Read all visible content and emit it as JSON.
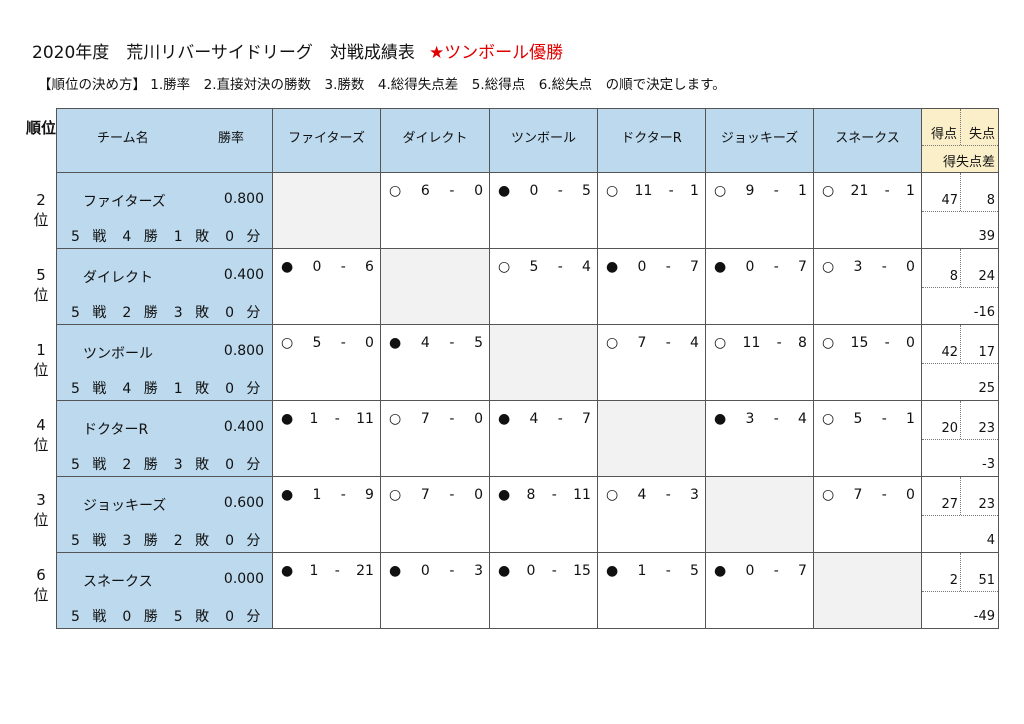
{
  "title": "2020年度　荒川リバーサイドリーグ　対戦成績表",
  "winner": "★ツンボール優勝",
  "rule": "【順位の決め方】 1.勝率　2.直接対決の勝数　3.勝数　4.総得失点差　5.総得点　6.総失点　の順で決定します。",
  "header": {
    "rank": "順位",
    "team": "チーム名",
    "rate": "勝率",
    "gf": "得点",
    "ga": "失点",
    "diff": "得失点差",
    "opponents": [
      "ファイターズ",
      "ダイレクト",
      "ツンボール",
      "ドクターR",
      "ジョッキーズ",
      "スネークス"
    ]
  },
  "rows": [
    {
      "rank": "2\n位",
      "name": "ファイターズ",
      "rate": "0.800",
      "record": "5 戦　4 勝　1 敗　0 分",
      "gf": "47",
      "ga": "8",
      "diff": "39",
      "results": [
        null,
        [
          "○",
          "6",
          "-",
          "0"
        ],
        [
          "●",
          "0",
          "-",
          "5"
        ],
        [
          "○",
          "11",
          "-",
          "1"
        ],
        [
          "○",
          "9",
          "-",
          "1"
        ],
        [
          "○",
          "21",
          "-",
          "1"
        ]
      ]
    },
    {
      "rank": "5\n位",
      "name": "ダイレクト",
      "rate": "0.400",
      "record": "5 戦　2 勝　3 敗　0 分",
      "gf": "8",
      "ga": "24",
      "diff": "-16",
      "results": [
        [
          "●",
          "0",
          "-",
          "6"
        ],
        null,
        [
          "○",
          "5",
          "-",
          "4"
        ],
        [
          "●",
          "0",
          "-",
          "7"
        ],
        [
          "●",
          "0",
          "-",
          "7"
        ],
        [
          "○",
          "3",
          "-",
          "0"
        ]
      ]
    },
    {
      "rank": "1\n位",
      "name": "ツンボール",
      "rate": "0.800",
      "record": "5 戦　4 勝　1 敗　0 分",
      "gf": "42",
      "ga": "17",
      "diff": "25",
      "results": [
        [
          "○",
          "5",
          "-",
          "0"
        ],
        [
          "●",
          "4",
          "-",
          "5"
        ],
        null,
        [
          "○",
          "7",
          "-",
          "4"
        ],
        [
          "○",
          "11",
          "-",
          "8"
        ],
        [
          "○",
          "15",
          "-",
          "0"
        ]
      ]
    },
    {
      "rank": "4\n位",
      "name": "ドクターR",
      "rate": "0.400",
      "record": "5 戦　2 勝　3 敗　0 分",
      "gf": "20",
      "ga": "23",
      "diff": "-3",
      "results": [
        [
          "●",
          "1",
          "-",
          "11"
        ],
        [
          "○",
          "7",
          "-",
          "0"
        ],
        [
          "●",
          "4",
          "-",
          "7"
        ],
        null,
        [
          "●",
          "3",
          "-",
          "4"
        ],
        [
          "○",
          "5",
          "-",
          "1"
        ]
      ]
    },
    {
      "rank": "3\n位",
      "name": "ジョッキーズ",
      "rate": "0.600",
      "record": "5 戦　3 勝　2 敗　0 分",
      "gf": "27",
      "ga": "23",
      "diff": "4",
      "results": [
        [
          "●",
          "1",
          "-",
          "9"
        ],
        [
          "○",
          "7",
          "-",
          "0"
        ],
        [
          "●",
          "8",
          "-",
          "11"
        ],
        [
          "○",
          "4",
          "-",
          "3"
        ],
        null,
        [
          "○",
          "7",
          "-",
          "0"
        ]
      ]
    },
    {
      "rank": "6\n位",
      "name": "スネークス",
      "rate": "0.000",
      "record": "5 戦　0 勝　5 敗　0 分",
      "gf": "2",
      "ga": "51",
      "diff": "-49",
      "results": [
        [
          "●",
          "1",
          "-",
          "21"
        ],
        [
          "●",
          "0",
          "-",
          "3"
        ],
        [
          "●",
          "0",
          "-",
          "15"
        ],
        [
          "●",
          "1",
          "-",
          "5"
        ],
        [
          "●",
          "0",
          "-",
          "7"
        ],
        null
      ]
    }
  ]
}
